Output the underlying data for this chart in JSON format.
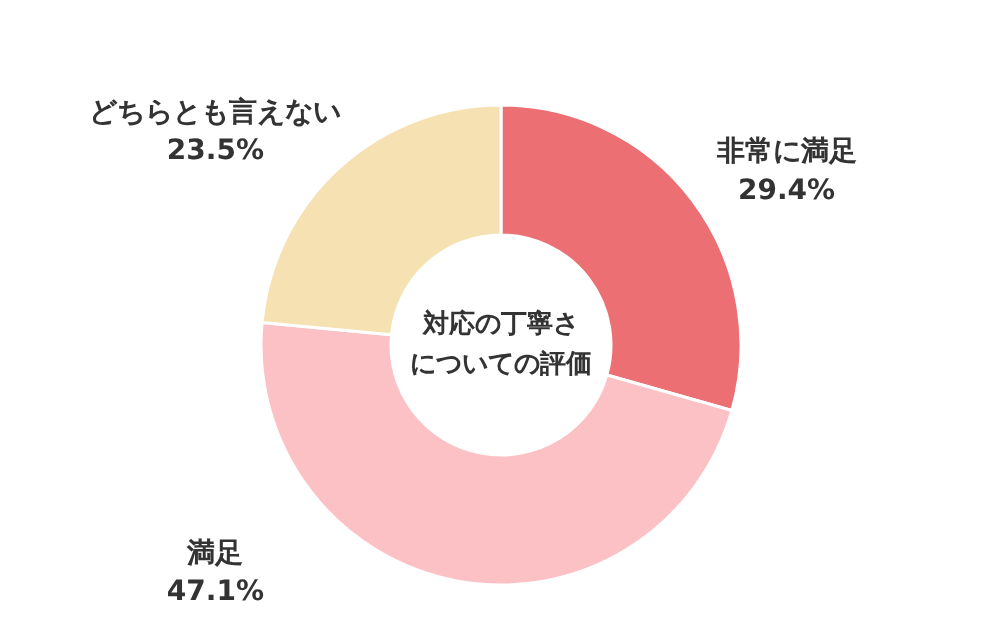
{
  "chart_data": {
    "type": "donut",
    "title": "対応の丁寧さについての評価",
    "categories": [
      "非常に満足",
      "満足",
      "どちらとも言えない"
    ],
    "values": [
      29.4,
      47.1,
      23.5
    ],
    "value_labels": [
      "29.4%",
      "47.1%",
      "23.5%"
    ],
    "colors": [
      "#ec7073",
      "#fcc1c5",
      "#f5e1b1"
    ],
    "legend": false
  }
}
